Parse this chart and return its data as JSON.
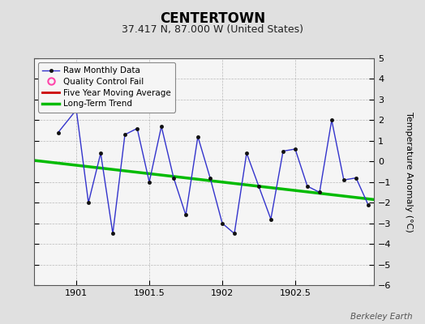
{
  "title": "CENTERTOWN",
  "subtitle": "37.417 N, 87.000 W (United States)",
  "credit": "Berkeley Earth",
  "ylabel": "Temperature Anomaly (°C)",
  "xlim": [
    1900.71,
    1903.04
  ],
  "ylim": [
    -6,
    5
  ],
  "yticks": [
    -6,
    -5,
    -4,
    -3,
    -2,
    -1,
    0,
    1,
    2,
    3,
    4,
    5
  ],
  "xticks": [
    1901,
    1901.5,
    1902,
    1902.5
  ],
  "background_color": "#e0e0e0",
  "plot_bg_color": "#f5f5f5",
  "raw_x": [
    1900.875,
    1901.0,
    1901.083,
    1901.167,
    1901.25,
    1901.333,
    1901.417,
    1901.5,
    1901.583,
    1901.667,
    1901.75,
    1901.833,
    1901.917,
    1902.0,
    1902.083,
    1902.167,
    1902.25,
    1902.333,
    1902.417,
    1902.5,
    1902.583,
    1902.667,
    1902.75,
    1902.833,
    1902.917,
    1903.0
  ],
  "raw_y": [
    1.4,
    2.5,
    -2.0,
    0.4,
    -3.5,
    1.3,
    1.6,
    -1.0,
    1.7,
    -0.8,
    -2.6,
    1.2,
    -0.8,
    -3.0,
    -3.5,
    0.4,
    -1.2,
    -2.8,
    0.5,
    0.6,
    -1.2,
    -1.5,
    2.0,
    -0.9,
    -0.8,
    -2.1
  ],
  "trend_x": [
    1900.71,
    1903.04
  ],
  "trend_y": [
    0.05,
    -1.85
  ],
  "raw_line_color": "#3333cc",
  "raw_marker_color": "#111111",
  "trend_color": "#00bb00",
  "ma_color": "#cc0000",
  "qc_color": "#ff44aa",
  "legend_labels": [
    "Raw Monthly Data",
    "Quality Control Fail",
    "Five Year Moving Average",
    "Long-Term Trend"
  ],
  "title_fontsize": 12,
  "subtitle_fontsize": 9,
  "label_fontsize": 8,
  "tick_fontsize": 8,
  "credit_fontsize": 7.5
}
